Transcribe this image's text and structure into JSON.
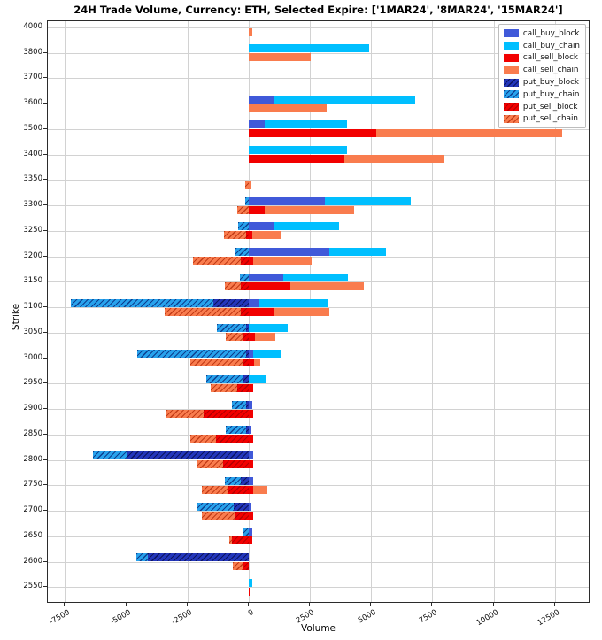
{
  "chart_data": {
    "type": "bar",
    "orientation": "horizontal-diverging-stacked",
    "title": "24H Trade Volume, Currency: ETH, Selected Expire: ['1MAR24', '8MAR24', '15MAR24']",
    "xlabel": "Volume",
    "ylabel": "Strike",
    "grid": true,
    "legend_position": "upper right",
    "xlim": [
      -8200,
      13950
    ],
    "x_ticks": [
      -7500,
      -5000,
      -2500,
      0,
      2500,
      5000,
      7500,
      10000,
      12500
    ],
    "x_tick_labels": [
      "-7500",
      "-5000",
      "-2500",
      "0",
      "2500",
      "5000",
      "7500",
      "10000",
      "12500"
    ],
    "series_styles": [
      {
        "key": "call_buy_block",
        "label": "call_buy_block",
        "color": "#4059d9",
        "hatch": false,
        "hatch_color": null
      },
      {
        "key": "call_buy_chain",
        "label": "call_buy_chain",
        "color": "#00bfff",
        "hatch": false,
        "hatch_color": null
      },
      {
        "key": "call_sell_block",
        "label": "call_sell_block",
        "color": "#f20000",
        "hatch": false,
        "hatch_color": null
      },
      {
        "key": "call_sell_chain",
        "label": "call_sell_chain",
        "color": "#f97c4e",
        "hatch": false,
        "hatch_color": null
      },
      {
        "key": "put_buy_block",
        "label": "put_buy_block",
        "color": "#2336bb",
        "hatch": true,
        "hatch_color": "#0c1560"
      },
      {
        "key": "put_buy_chain",
        "label": "put_buy_chain",
        "color": "#28a2ec",
        "hatch": true,
        "hatch_color": "#0d3f8f"
      },
      {
        "key": "put_sell_block",
        "label": "put_sell_block",
        "color": "#f20000",
        "hatch": true,
        "hatch_color": "#b40000"
      },
      {
        "key": "put_sell_chain",
        "label": "put_sell_chain",
        "color": "#f97c4e",
        "hatch": true,
        "hatch_color": "#c23c17"
      }
    ],
    "buy_right_keys": [
      "call_buy_block",
      "call_buy_chain"
    ],
    "buy_left_keys": [
      "put_buy_block",
      "put_buy_chain"
    ],
    "sell_right_keys": [
      "call_sell_block",
      "call_sell_chain"
    ],
    "sell_left_keys": [
      "put_sell_block",
      "put_sell_chain"
    ],
    "rows": [
      {
        "strike": "4000",
        "call_buy_block": 0,
        "call_buy_chain": 0,
        "call_sell_block": 0,
        "call_sell_chain": 150,
        "put_buy_block": 0,
        "put_buy_chain": 0,
        "put_sell_block": 0,
        "put_sell_chain": 0
      },
      {
        "strike": "3800",
        "call_buy_block": 0,
        "call_buy_chain": 4900,
        "call_sell_block": 0,
        "call_sell_chain": 2550,
        "put_buy_block": 0,
        "put_buy_chain": 0,
        "put_sell_block": 0,
        "put_sell_chain": 0
      },
      {
        "strike": "3700",
        "call_buy_block": 0,
        "call_buy_chain": 0,
        "call_sell_block": 0,
        "call_sell_chain": 0,
        "put_buy_block": 0,
        "put_buy_chain": 0,
        "put_sell_block": 0,
        "put_sell_chain": 0
      },
      {
        "strike": "3600",
        "call_buy_block": 1000,
        "call_buy_chain": 5800,
        "call_sell_block": 0,
        "call_sell_chain": 3200,
        "put_buy_block": 0,
        "put_buy_chain": 0,
        "put_sell_block": 0,
        "put_sell_chain": 0
      },
      {
        "strike": "3500",
        "call_buy_block": 650,
        "call_buy_chain": 3350,
        "call_sell_block": 5200,
        "call_sell_chain": 7600,
        "put_buy_block": 0,
        "put_buy_chain": 0,
        "put_sell_block": 0,
        "put_sell_chain": 0
      },
      {
        "strike": "3400",
        "call_buy_block": 0,
        "call_buy_chain": 4000,
        "call_sell_block": 3900,
        "call_sell_chain": 4100,
        "put_buy_block": 0,
        "put_buy_chain": 0,
        "put_sell_block": 0,
        "put_sell_chain": 0
      },
      {
        "strike": "3350",
        "call_buy_block": 0,
        "call_buy_chain": 0,
        "call_sell_block": 0,
        "call_sell_chain": 100,
        "put_buy_block": 0,
        "put_buy_chain": 0,
        "put_sell_block": 0,
        "put_sell_chain": -150
      },
      {
        "strike": "3300",
        "call_buy_block": 3100,
        "call_buy_chain": 3500,
        "call_sell_block": 650,
        "call_sell_chain": 3650,
        "put_buy_block": 0,
        "put_buy_chain": -150,
        "put_sell_block": 0,
        "put_sell_chain": -450
      },
      {
        "strike": "3250",
        "call_buy_block": 1000,
        "call_buy_chain": 2700,
        "call_sell_block": 150,
        "call_sell_chain": 1150,
        "put_buy_block": 0,
        "put_buy_chain": -430,
        "put_sell_block": -100,
        "put_sell_chain": -900
      },
      {
        "strike": "3200",
        "call_buy_block": 3300,
        "call_buy_chain": 2300,
        "call_sell_block": 180,
        "call_sell_chain": 2380,
        "put_buy_block": 0,
        "put_buy_chain": -550,
        "put_sell_block": -330,
        "put_sell_chain": -1950
      },
      {
        "strike": "3150",
        "call_buy_block": 1400,
        "call_buy_chain": 2650,
        "call_sell_block": 1700,
        "call_sell_chain": 3000,
        "put_buy_block": 0,
        "put_buy_chain": -370,
        "put_sell_block": -330,
        "put_sell_chain": -650
      },
      {
        "strike": "3100",
        "call_buy_block": 400,
        "call_buy_chain": 2850,
        "call_sell_block": 1050,
        "call_sell_chain": 2250,
        "put_buy_block": -1450,
        "put_buy_chain": -5800,
        "put_sell_block": -330,
        "put_sell_chain": -3100
      },
      {
        "strike": "3050",
        "call_buy_block": 0,
        "call_buy_chain": 1600,
        "call_sell_block": 250,
        "call_sell_chain": 850,
        "put_buy_block": -100,
        "put_buy_chain": -1200,
        "put_sell_block": -260,
        "put_sell_chain": -690
      },
      {
        "strike": "3000",
        "call_buy_block": 170,
        "call_buy_chain": 1150,
        "call_sell_block": 220,
        "call_sell_chain": 250,
        "put_buy_block": -100,
        "put_buy_chain": -4450,
        "put_sell_block": -260,
        "put_sell_chain": -2120
      },
      {
        "strike": "2950",
        "call_buy_block": 0,
        "call_buy_chain": 680,
        "call_sell_block": 200,
        "call_sell_chain": 0,
        "put_buy_block": -260,
        "put_buy_chain": -1470,
        "put_sell_block": -470,
        "put_sell_chain": -1080
      },
      {
        "strike": "2900",
        "call_buy_block": 130,
        "call_buy_chain": 0,
        "call_sell_block": 170,
        "call_sell_chain": 0,
        "put_buy_block": -90,
        "put_buy_chain": -600,
        "put_sell_block": -1840,
        "put_sell_chain": -1520
      },
      {
        "strike": "2850",
        "call_buy_block": 100,
        "call_buy_chain": 0,
        "call_sell_block": 170,
        "call_sell_chain": 0,
        "put_buy_block": -100,
        "put_buy_chain": -850,
        "put_sell_block": -1340,
        "put_sell_chain": -1040
      },
      {
        "strike": "2800",
        "call_buy_block": 170,
        "call_buy_chain": 0,
        "call_sell_block": 170,
        "call_sell_chain": 0,
        "put_buy_block": -5000,
        "put_buy_chain": -1350,
        "put_sell_block": -1050,
        "put_sell_chain": -1080
      },
      {
        "strike": "2750",
        "call_buy_block": 170,
        "call_buy_chain": 0,
        "call_sell_block": 170,
        "call_sell_chain": 590,
        "put_buy_block": -330,
        "put_buy_chain": -640,
        "put_sell_block": -830,
        "put_sell_chain": -1080
      },
      {
        "strike": "2700",
        "call_buy_block": 100,
        "call_buy_chain": 0,
        "call_sell_block": 170,
        "call_sell_chain": 0,
        "put_buy_block": -600,
        "put_buy_chain": -1530,
        "put_sell_block": -540,
        "put_sell_chain": -1370
      },
      {
        "strike": "2650",
        "call_buy_block": 150,
        "call_buy_chain": 0,
        "call_sell_block": 150,
        "call_sell_chain": 0,
        "put_buy_block": 0,
        "put_buy_chain": -250,
        "put_sell_block": -700,
        "put_sell_chain": -100
      },
      {
        "strike": "2600",
        "call_buy_block": 0,
        "call_buy_chain": 0,
        "call_sell_block": 0,
        "call_sell_chain": 0,
        "put_buy_block": -4100,
        "put_buy_chain": -500,
        "put_sell_block": -250,
        "put_sell_chain": -400
      },
      {
        "strike": "2550",
        "call_buy_block": 0,
        "call_buy_chain": 150,
        "call_sell_block": 50,
        "call_sell_chain": 0,
        "put_buy_block": 0,
        "put_buy_chain": 0,
        "put_sell_block": 0,
        "put_sell_chain": 0
      }
    ]
  }
}
